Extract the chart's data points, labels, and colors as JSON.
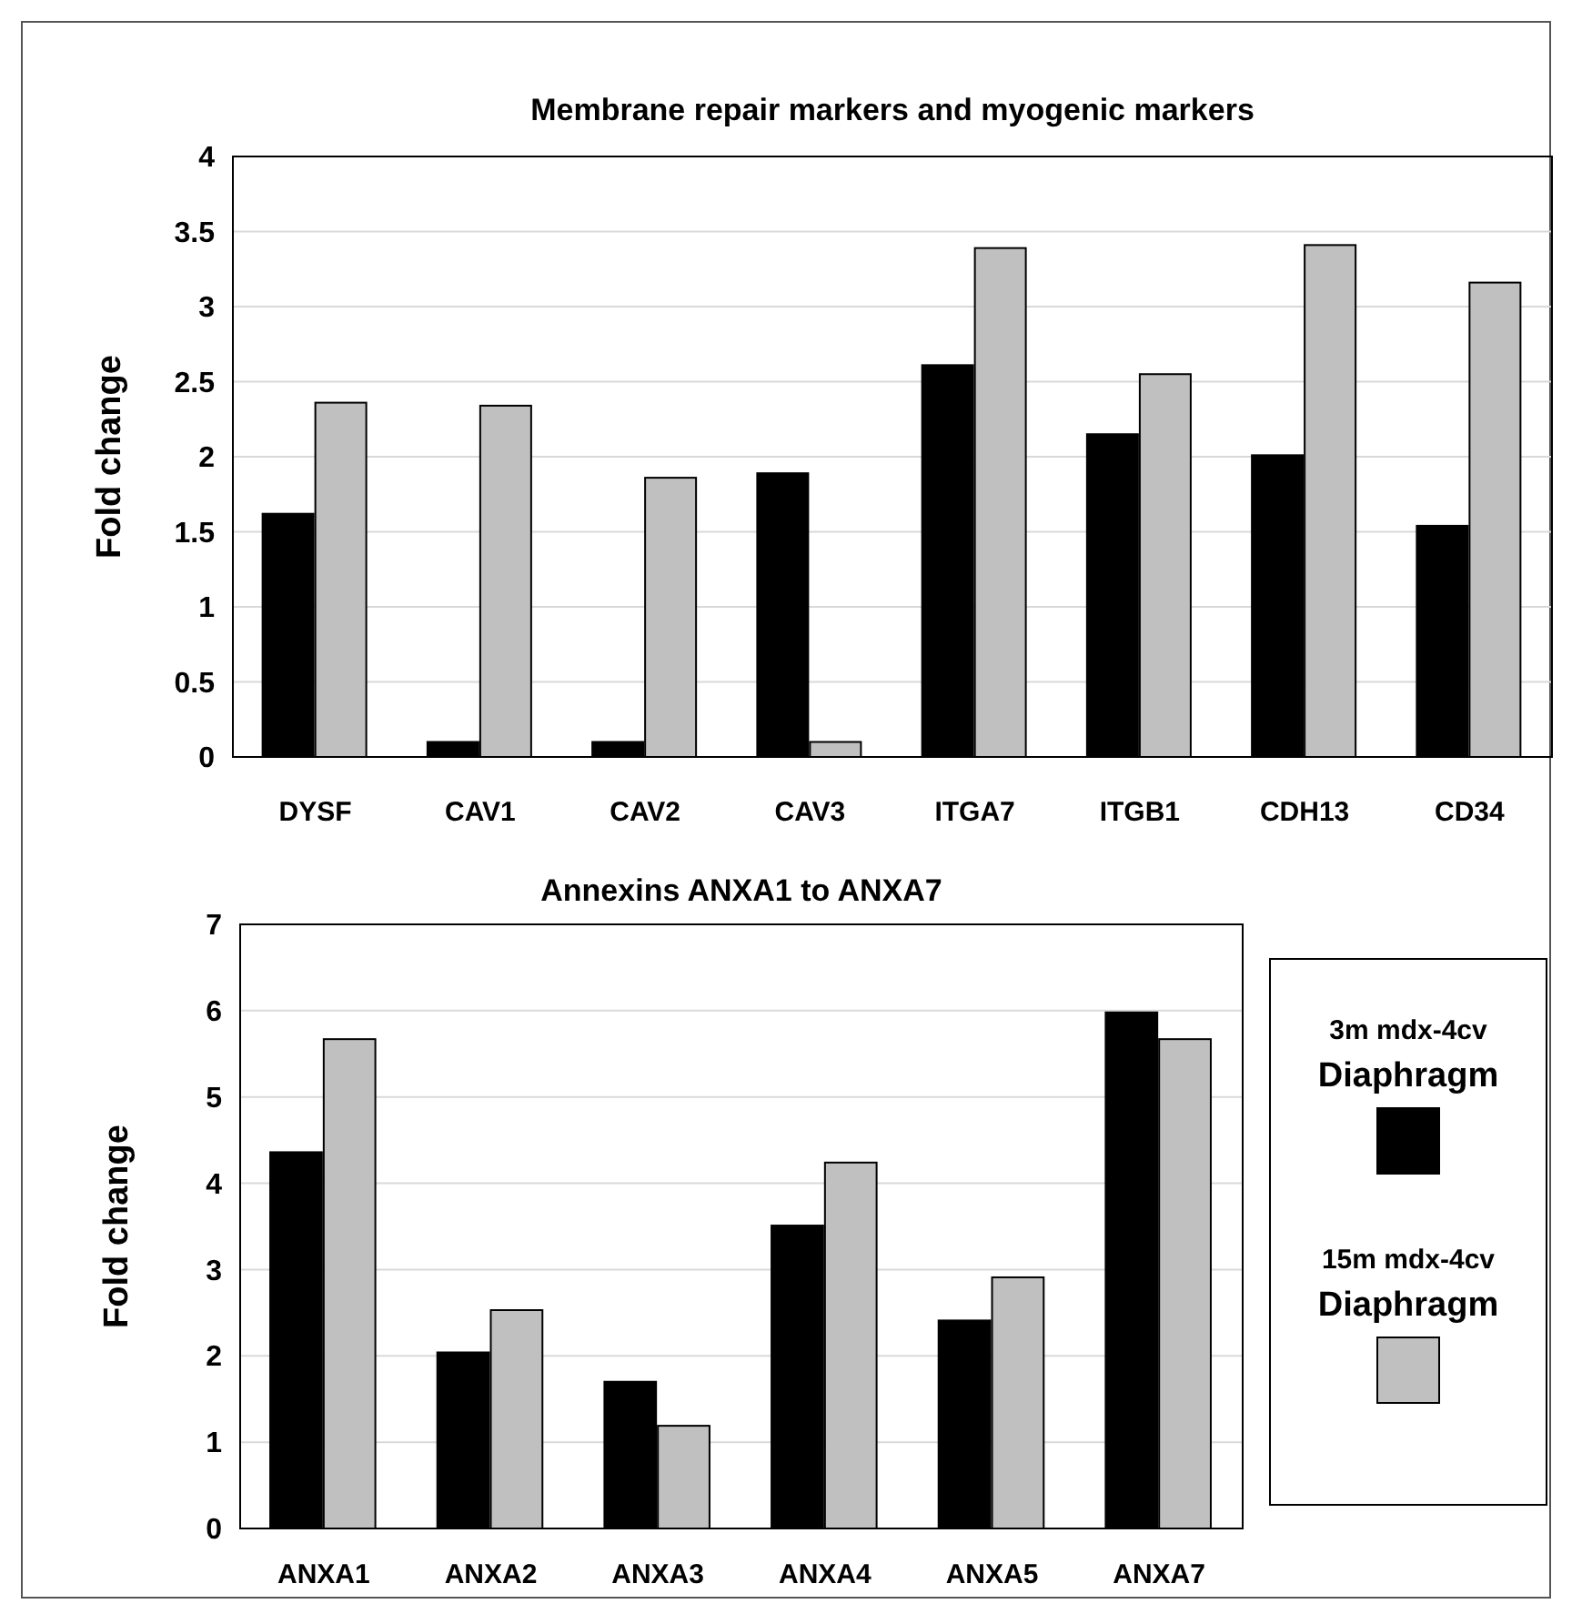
{
  "chart_data": [
    {
      "type": "bar",
      "title": "Membrane repair markers and myogenic markers",
      "ylabel": "Fold change",
      "categories": [
        "DYSF",
        "CAV1",
        "CAV2",
        "CAV3",
        "ITGA7",
        "ITGB1",
        "CDH13",
        "CD34"
      ],
      "series": [
        {
          "color": "#000000",
          "values": [
            1.62,
            0.1,
            0.1,
            1.89,
            2.61,
            2.15,
            2.01,
            1.54
          ]
        },
        {
          "color": "#c0c0c0",
          "values": [
            2.36,
            2.34,
            1.86,
            0.1,
            3.39,
            2.55,
            3.41,
            3.16
          ]
        }
      ],
      "ylim": [
        0,
        4
      ],
      "yticks": [
        0,
        0.5,
        1,
        1.5,
        2,
        2.5,
        3,
        3.5,
        4
      ],
      "grid": "y",
      "legend": false
    },
    {
      "type": "bar",
      "title": "Annexins ANXA1 to ANXA7",
      "ylabel": "Fold change",
      "categories": [
        "ANXA1",
        "ANXA2",
        "ANXA3",
        "ANXA4",
        "ANXA5",
        "ANXA7"
      ],
      "series": [
        {
          "name": "3m mdx-4cv Diaphragm",
          "color": "#000000",
          "values": [
            4.36,
            2.04,
            1.7,
            3.51,
            2.41,
            5.98
          ]
        },
        {
          "name": "15m mdx-4cv Diaphragm",
          "color": "#c0c0c0",
          "values": [
            5.67,
            2.53,
            1.19,
            4.24,
            2.91,
            5.67
          ]
        }
      ],
      "ylim": [
        0,
        7
      ],
      "yticks": [
        0,
        1,
        2,
        3,
        4,
        5,
        6,
        7
      ],
      "grid": "y",
      "legend": "right"
    }
  ]
}
